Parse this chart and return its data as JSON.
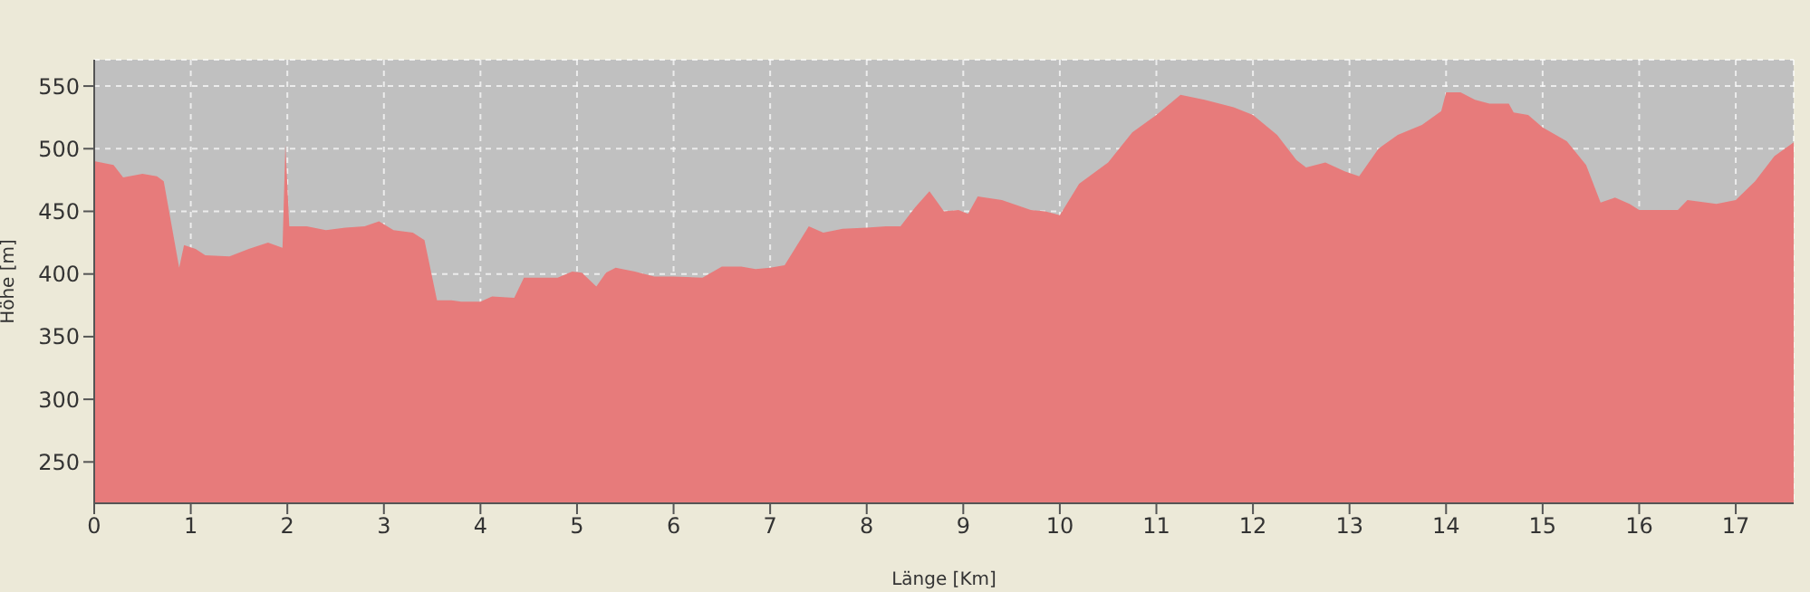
{
  "chart_data": {
    "type": "area",
    "xlabel": "Länge [Km]",
    "ylabel": "Höhe [m]",
    "x": [
      0,
      0.2,
      0.3,
      0.5,
      0.65,
      0.72,
      0.88,
      0.93,
      1.05,
      1.15,
      1.4,
      1.6,
      1.8,
      1.95,
      1.98,
      2.02,
      2.2,
      2.4,
      2.6,
      2.8,
      2.95,
      3.1,
      3.3,
      3.42,
      3.55,
      3.7,
      3.8,
      4.0,
      4.12,
      4.35,
      4.45,
      4.6,
      4.8,
      4.95,
      5.05,
      5.2,
      5.3,
      5.4,
      5.6,
      5.8,
      6.0,
      6.3,
      6.5,
      6.7,
      6.85,
      7.0,
      7.15,
      7.4,
      7.55,
      7.75,
      8.0,
      8.2,
      8.35,
      8.5,
      8.65,
      8.8,
      8.95,
      9.05,
      9.15,
      9.4,
      9.7,
      9.85,
      10.0,
      10.2,
      10.5,
      10.75,
      11.0,
      11.25,
      11.5,
      11.8,
      12.0,
      12.25,
      12.45,
      12.55,
      12.75,
      12.95,
      13.1,
      13.3,
      13.5,
      13.75,
      13.95,
      14.0,
      14.15,
      14.3,
      14.45,
      14.65,
      14.7,
      14.85,
      15.0,
      15.25,
      15.45,
      15.6,
      15.75,
      15.9,
      16.0,
      16.4,
      16.5,
      16.8,
      17.0,
      17.2,
      17.4,
      17.6
    ],
    "series": [
      {
        "color": "#e77b7b",
        "values": [
          490,
          487,
          477,
          480,
          478,
          474,
          405,
          423,
          420,
          415,
          414,
          420,
          425,
          421,
          503,
          438,
          438,
          435,
          437,
          438,
          442,
          435,
          433,
          427,
          379,
          379,
          378,
          378,
          382,
          381,
          397,
          397,
          397,
          402,
          401,
          390,
          401,
          405,
          402,
          398,
          398,
          397,
          406,
          406,
          404,
          405,
          407,
          438,
          433,
          436,
          437,
          438,
          438,
          453,
          466,
          450,
          451,
          448,
          462,
          459,
          451,
          450,
          447,
          472,
          489,
          513,
          527,
          543,
          539,
          533,
          527,
          511,
          491,
          485,
          489,
          482,
          478,
          500,
          511,
          519,
          530,
          545,
          545,
          539,
          536,
          536,
          529,
          527,
          517,
          506,
          487,
          457,
          461,
          456,
          451,
          451,
          459,
          456,
          459,
          474,
          494,
          505
        ]
      }
    ],
    "xlim": [
      0,
      17.6
    ],
    "xticks": [
      0,
      1,
      2,
      3,
      4,
      5,
      6,
      7,
      8,
      9,
      10,
      11,
      12,
      13,
      14,
      15,
      16,
      17
    ],
    "ylim": [
      217,
      571
    ],
    "yticks": [
      250,
      300,
      350,
      400,
      450,
      500,
      550
    ],
    "grid": true,
    "legend": false
  }
}
